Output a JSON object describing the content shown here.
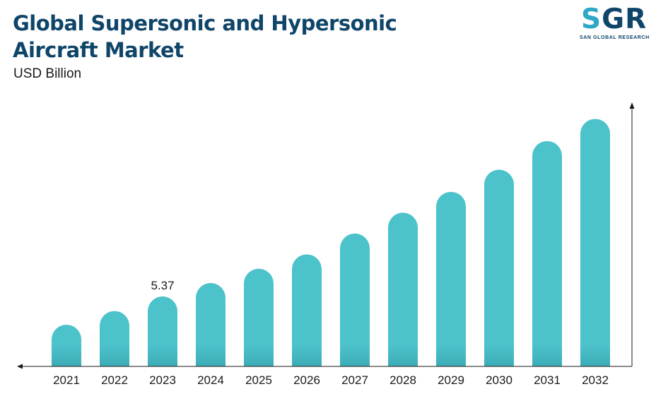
{
  "header": {
    "title": "Global Supersonic and Hypersonic Aircraft Market",
    "subtitle": "USD Billion"
  },
  "logo": {
    "letters_accent": "S",
    "letters_main": "GR",
    "tagline": "SAN GLOBAL RESEARCH"
  },
  "colors": {
    "bar": "#4cc2cb",
    "bar_base": "#3aa9b3",
    "title": "#0f4569",
    "axis": "#1a1a1a"
  },
  "chart_data": {
    "type": "bar",
    "title": "Global Supersonic and Hypersonic Aircraft Market",
    "ylabel": "USD Billion",
    "categories": [
      "2021",
      "2022",
      "2023",
      "2024",
      "2025",
      "2026",
      "2027",
      "2028",
      "2029",
      "2030",
      "2031",
      "2032"
    ],
    "values": [
      3.2,
      4.25,
      5.37,
      6.4,
      7.5,
      8.6,
      10.2,
      11.8,
      13.4,
      15.1,
      17.3,
      19.0
    ],
    "data_labels": [
      {
        "index": 2,
        "text": "5.37"
      }
    ],
    "ylim": [
      0,
      20
    ],
    "grid": false,
    "legend": "none"
  }
}
